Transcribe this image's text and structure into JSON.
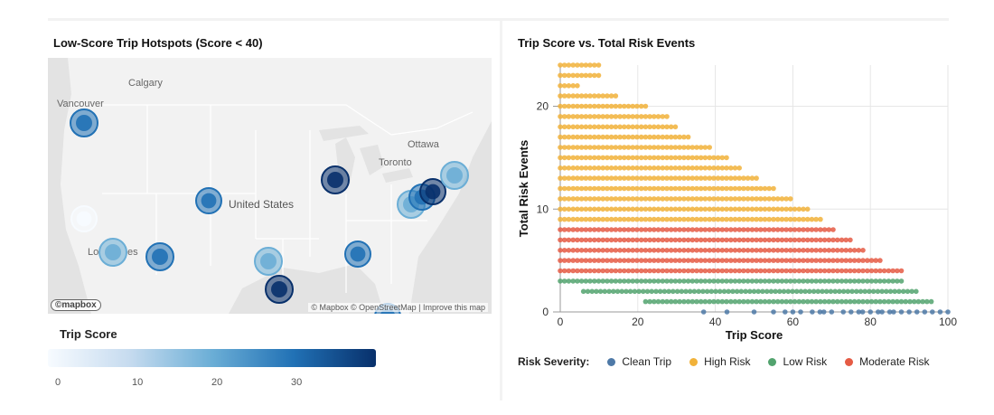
{
  "map_panel": {
    "title": "Low-Score Trip Hotspots (Score < 40)",
    "labels": {
      "calgary": "Calgary",
      "vancouver": "Vancouver",
      "united_states": "United States",
      "ottawa": "Ottawa",
      "toronto": "Toronto",
      "los_angeles_partial": "Lo",
      "los_angeles_partial2": "es"
    },
    "attribution": "© Mapbox © OpenStreetMap | Improve this map",
    "logo": "©mapbox",
    "legend_title": "Trip Score",
    "colorbar_ticks": [
      "0",
      "10",
      "20",
      "30"
    ],
    "colorbar_colors": [
      "#f7fbff",
      "#08306b"
    ]
  },
  "chart_data": {
    "type": "scatter",
    "title": "Trip Score vs. Total Risk Events",
    "xlabel": "Trip Score",
    "ylabel": "Total Risk Events",
    "xlim": [
      0,
      100
    ],
    "ylim": [
      0,
      24
    ],
    "x_ticks": [
      0,
      20,
      40,
      60,
      80,
      100
    ],
    "y_ticks": [
      0,
      10,
      20
    ],
    "grid": true,
    "legend_title": "Risk Severity:",
    "legend_position": "bottom",
    "series": [
      {
        "name": "Clean Trip",
        "color": "#4e79a7",
        "points": [
          [
            37,
            0
          ],
          [
            43,
            0
          ],
          [
            50,
            0
          ],
          [
            55,
            0
          ],
          [
            58,
            0
          ],
          [
            60,
            0
          ],
          [
            62,
            0
          ],
          [
            65,
            0
          ],
          [
            67,
            0
          ],
          [
            68,
            0
          ],
          [
            70,
            0
          ],
          [
            73,
            0
          ],
          [
            75,
            0
          ],
          [
            77,
            0
          ],
          [
            78,
            0
          ],
          [
            80,
            0
          ],
          [
            82,
            0
          ],
          [
            83,
            0
          ],
          [
            85,
            0
          ],
          [
            86,
            0
          ],
          [
            88,
            0
          ],
          [
            90,
            0
          ],
          [
            92,
            0
          ],
          [
            94,
            0
          ],
          [
            96,
            0
          ],
          [
            98,
            0
          ],
          [
            100,
            0
          ]
        ]
      },
      {
        "name": "High Risk",
        "color": "#f1b23a",
        "rows": [
          [
            24,
            0,
            10
          ],
          [
            23,
            0,
            10
          ],
          [
            22,
            0,
            5
          ],
          [
            21,
            0,
            15
          ],
          [
            20,
            0,
            23
          ],
          [
            19,
            0,
            28
          ],
          [
            18,
            0,
            30
          ],
          [
            17,
            0,
            34
          ],
          [
            16,
            0,
            39
          ],
          [
            15,
            0,
            43
          ],
          [
            14,
            0,
            47
          ],
          [
            13,
            0,
            51
          ],
          [
            12,
            0,
            56
          ],
          [
            11,
            0,
            60
          ],
          [
            10,
            0,
            64
          ],
          [
            9,
            0,
            68
          ]
        ]
      },
      {
        "name": "Low Risk",
        "color": "#52a36e",
        "rows": [
          [
            3,
            0,
            88
          ],
          [
            2,
            6,
            92
          ],
          [
            1,
            22,
            96
          ]
        ]
      },
      {
        "name": "Moderate Risk",
        "color": "#e55b44",
        "rows": [
          [
            8,
            0,
            71
          ],
          [
            7,
            0,
            75
          ],
          [
            6,
            0,
            79
          ],
          [
            5,
            0,
            83
          ],
          [
            4,
            0,
            88
          ]
        ]
      }
    ]
  }
}
